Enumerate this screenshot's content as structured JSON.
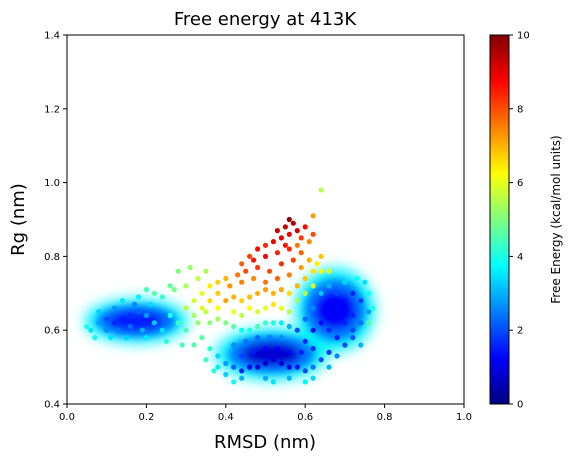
{
  "chart_data": {
    "type": "scatter",
    "title": "Free energy at 413K",
    "xlabel": "RMSD (nm)",
    "ylabel": "Rg (nm)",
    "xlim": [
      0.0,
      1.0
    ],
    "ylim": [
      0.4,
      1.4
    ],
    "xticks": [
      "0.0",
      "0.2",
      "0.4",
      "0.6",
      "0.8",
      "1.0"
    ],
    "yticks": [
      "0.4",
      "0.6",
      "0.8",
      "1.0",
      "1.2",
      "1.4"
    ],
    "grid": false,
    "colormap": "jet",
    "colorbar": {
      "label": "Free Energy (kcal/mol units)",
      "range": [
        0,
        10
      ],
      "ticks": [
        "0",
        "2",
        "4",
        "6",
        "8",
        "10"
      ]
    },
    "regions": [
      {
        "description": "left basin",
        "x": [
          0.05,
          0.3
        ],
        "y": [
          0.57,
          0.68
        ],
        "min_energy": 1.5
      },
      {
        "description": "central low basin",
        "x": [
          0.38,
          0.65
        ],
        "y": [
          0.47,
          0.6
        ],
        "min_energy": 0.8
      },
      {
        "description": "right vertical basin",
        "x": [
          0.58,
          0.77
        ],
        "y": [
          0.55,
          0.76
        ],
        "min_energy": 1.2
      },
      {
        "description": "high-energy tail",
        "x": [
          0.35,
          0.66
        ],
        "y": [
          0.62,
          0.91
        ],
        "max_energy": 9.8
      }
    ],
    "points": [
      [
        0.06,
        0.6,
        3.5
      ],
      [
        0.08,
        0.62,
        2.8
      ],
      [
        0.1,
        0.63,
        2.0
      ],
      [
        0.12,
        0.62,
        1.6
      ],
      [
        0.14,
        0.63,
        1.5
      ],
      [
        0.16,
        0.64,
        1.7
      ],
      [
        0.18,
        0.65,
        2.2
      ],
      [
        0.2,
        0.64,
        2.8
      ],
      [
        0.22,
        0.62,
        3.2
      ],
      [
        0.24,
        0.6,
        3.5
      ],
      [
        0.1,
        0.6,
        2.6
      ],
      [
        0.13,
        0.6,
        2.4
      ],
      [
        0.16,
        0.61,
        2.3
      ],
      [
        0.19,
        0.6,
        3.0
      ],
      [
        0.08,
        0.65,
        3.3
      ],
      [
        0.12,
        0.66,
        2.7
      ],
      [
        0.17,
        0.67,
        2.6
      ],
      [
        0.21,
        0.67,
        3.4
      ],
      [
        0.26,
        0.64,
        4.0
      ],
      [
        0.28,
        0.62,
        4.3
      ],
      [
        0.3,
        0.6,
        4.5
      ],
      [
        0.07,
        0.58,
        3.9
      ],
      [
        0.11,
        0.58,
        3.5
      ],
      [
        0.15,
        0.58,
        3.3
      ],
      [
        0.2,
        0.58,
        3.6
      ],
      [
        0.25,
        0.57,
        4.1
      ],
      [
        0.29,
        0.56,
        4.4
      ],
      [
        0.32,
        0.56,
        4.6
      ],
      [
        0.24,
        0.69,
        4.3
      ],
      [
        0.27,
        0.71,
        4.9
      ],
      [
        0.22,
        0.7,
        4.6
      ],
      [
        0.3,
        0.72,
        5.4
      ],
      [
        0.33,
        0.74,
        5.6
      ],
      [
        0.31,
        0.77,
        5.2
      ],
      [
        0.35,
        0.76,
        5.4
      ],
      [
        0.34,
        0.58,
        4.6
      ],
      [
        0.36,
        0.55,
        4.2
      ],
      [
        0.38,
        0.53,
        3.4
      ],
      [
        0.4,
        0.51,
        2.8
      ],
      [
        0.42,
        0.5,
        2.2
      ],
      [
        0.44,
        0.49,
        1.6
      ],
      [
        0.46,
        0.5,
        1.2
      ],
      [
        0.48,
        0.5,
        0.9
      ],
      [
        0.5,
        0.51,
        0.8
      ],
      [
        0.52,
        0.52,
        0.8
      ],
      [
        0.54,
        0.51,
        0.9
      ],
      [
        0.56,
        0.5,
        1.1
      ],
      [
        0.58,
        0.5,
        1.4
      ],
      [
        0.6,
        0.49,
        1.9
      ],
      [
        0.62,
        0.5,
        2.4
      ],
      [
        0.64,
        0.52,
        2.0
      ],
      [
        0.66,
        0.54,
        1.8
      ],
      [
        0.44,
        0.53,
        1.9
      ],
      [
        0.47,
        0.54,
        1.5
      ],
      [
        0.5,
        0.55,
        1.3
      ],
      [
        0.53,
        0.55,
        1.2
      ],
      [
        0.56,
        0.54,
        1.3
      ],
      [
        0.59,
        0.54,
        1.5
      ],
      [
        0.62,
        0.55,
        1.7
      ],
      [
        0.42,
        0.56,
        2.6
      ],
      [
        0.45,
        0.57,
        2.4
      ],
      [
        0.48,
        0.58,
        2.3
      ],
      [
        0.51,
        0.58,
        2.5
      ],
      [
        0.54,
        0.58,
        2.6
      ],
      [
        0.4,
        0.48,
        3.3
      ],
      [
        0.44,
        0.47,
        3.0
      ],
      [
        0.5,
        0.47,
        2.9
      ],
      [
        0.56,
        0.47,
        3.0
      ],
      [
        0.62,
        0.47,
        3.4
      ],
      [
        0.38,
        0.5,
        3.6
      ],
      [
        0.6,
        0.57,
        1.6
      ],
      [
        0.62,
        0.6,
        1.4
      ],
      [
        0.64,
        0.62,
        1.3
      ],
      [
        0.66,
        0.64,
        1.2
      ],
      [
        0.68,
        0.66,
        1.3
      ],
      [
        0.7,
        0.68,
        1.4
      ],
      [
        0.72,
        0.7,
        1.6
      ],
      [
        0.74,
        0.68,
        1.9
      ],
      [
        0.76,
        0.65,
        2.8
      ],
      [
        0.74,
        0.62,
        2.3
      ],
      [
        0.72,
        0.58,
        2.1
      ],
      [
        0.7,
        0.56,
        2.0
      ],
      [
        0.68,
        0.58,
        1.5
      ],
      [
        0.66,
        0.6,
        1.6
      ],
      [
        0.7,
        0.62,
        1.5
      ],
      [
        0.72,
        0.64,
        1.6
      ],
      [
        0.68,
        0.7,
        2.0
      ],
      [
        0.66,
        0.72,
        3.0
      ],
      [
        0.7,
        0.73,
        3.4
      ],
      [
        0.73,
        0.74,
        3.8
      ],
      [
        0.64,
        0.7,
        3.2
      ],
      [
        0.62,
        0.66,
        2.6
      ],
      [
        0.6,
        0.63,
        2.3
      ],
      [
        0.58,
        0.6,
        2.0
      ],
      [
        0.56,
        0.61,
        3.0
      ],
      [
        0.54,
        0.62,
        3.6
      ],
      [
        0.52,
        0.62,
        4.0
      ],
      [
        0.5,
        0.62,
        4.3
      ],
      [
        0.48,
        0.61,
        4.5
      ],
      [
        0.46,
        0.6,
        4.0
      ],
      [
        0.44,
        0.6,
        3.8
      ],
      [
        0.42,
        0.61,
        4.6
      ],
      [
        0.4,
        0.62,
        5.0
      ],
      [
        0.38,
        0.63,
        5.3
      ],
      [
        0.36,
        0.62,
        5.1
      ],
      [
        0.3,
        0.66,
        5.6
      ],
      [
        0.32,
        0.64,
        5.4
      ],
      [
        0.34,
        0.66,
        5.9
      ],
      [
        0.38,
        0.66,
        6.2
      ],
      [
        0.42,
        0.65,
        6.1
      ],
      [
        0.44,
        0.64,
        5.6
      ],
      [
        0.46,
        0.66,
        6.3
      ],
      [
        0.48,
        0.65,
        5.8
      ],
      [
        0.5,
        0.66,
        6.0
      ],
      [
        0.52,
        0.67,
        6.5
      ],
      [
        0.54,
        0.66,
        6.0
      ],
      [
        0.56,
        0.65,
        5.5
      ],
      [
        0.58,
        0.68,
        5.3
      ],
      [
        0.6,
        0.7,
        5.6
      ],
      [
        0.62,
        0.72,
        5.8
      ],
      [
        0.64,
        0.76,
        6.2
      ],
      [
        0.62,
        0.76,
        6.5
      ],
      [
        0.6,
        0.74,
        6.8
      ],
      [
        0.58,
        0.72,
        7.0
      ],
      [
        0.56,
        0.7,
        6.6
      ],
      [
        0.54,
        0.71,
        7.1
      ],
      [
        0.52,
        0.7,
        7.0
      ],
      [
        0.5,
        0.71,
        7.2
      ],
      [
        0.48,
        0.7,
        7.0
      ],
      [
        0.46,
        0.69,
        6.9
      ],
      [
        0.44,
        0.68,
        6.7
      ],
      [
        0.42,
        0.69,
        7.0
      ],
      [
        0.4,
        0.68,
        7.2
      ],
      [
        0.38,
        0.7,
        6.8
      ],
      [
        0.36,
        0.68,
        6.6
      ],
      [
        0.34,
        0.7,
        6.0
      ],
      [
        0.32,
        0.68,
        5.8
      ],
      [
        0.41,
        0.72,
        7.3
      ],
      [
        0.44,
        0.73,
        7.5
      ],
      [
        0.47,
        0.74,
        7.4
      ],
      [
        0.5,
        0.73,
        7.6
      ],
      [
        0.53,
        0.74,
        7.8
      ],
      [
        0.56,
        0.75,
        7.5
      ],
      [
        0.59,
        0.77,
        7.2
      ],
      [
        0.61,
        0.79,
        7.0
      ],
      [
        0.63,
        0.78,
        6.4
      ],
      [
        0.45,
        0.76,
        8.0
      ],
      [
        0.48,
        0.77,
        8.2
      ],
      [
        0.51,
        0.76,
        8.0
      ],
      [
        0.54,
        0.78,
        8.3
      ],
      [
        0.57,
        0.79,
        8.1
      ],
      [
        0.59,
        0.81,
        7.8
      ],
      [
        0.47,
        0.79,
        8.6
      ],
      [
        0.5,
        0.8,
        8.8
      ],
      [
        0.53,
        0.81,
        8.5
      ],
      [
        0.56,
        0.82,
        8.4
      ],
      [
        0.58,
        0.83,
        7.6
      ],
      [
        0.52,
        0.84,
        8.9
      ],
      [
        0.54,
        0.85,
        9.0
      ],
      [
        0.56,
        0.86,
        8.9
      ],
      [
        0.55,
        0.88,
        9.3
      ],
      [
        0.57,
        0.89,
        9.5
      ],
      [
        0.56,
        0.9,
        9.8
      ],
      [
        0.58,
        0.87,
        9.1
      ],
      [
        0.6,
        0.88,
        8.7
      ],
      [
        0.59,
        0.85,
        8.2
      ],
      [
        0.62,
        0.86,
        8.0
      ],
      [
        0.61,
        0.84,
        7.4
      ],
      [
        0.53,
        0.87,
        9.2
      ],
      [
        0.55,
        0.83,
        8.6
      ],
      [
        0.5,
        0.83,
        8.4
      ],
      [
        0.48,
        0.82,
        8.7
      ],
      [
        0.46,
        0.8,
        8.1
      ],
      [
        0.44,
        0.78,
        7.8
      ],
      [
        0.43,
        0.75,
        7.6
      ],
      [
        0.4,
        0.74,
        7.0
      ],
      [
        0.38,
        0.73,
        6.7
      ],
      [
        0.36,
        0.72,
        6.4
      ],
      [
        0.35,
        0.65,
        5.7
      ],
      [
        0.33,
        0.62,
        5.2
      ],
      [
        0.62,
        0.91,
        7.2
      ],
      [
        0.64,
        0.98,
        5.5
      ],
      [
        0.28,
        0.76,
        5.0
      ],
      [
        0.26,
        0.72,
        4.7
      ],
      [
        0.2,
        0.71,
        4.4
      ],
      [
        0.18,
        0.69,
        3.6
      ],
      [
        0.14,
        0.68,
        3.5
      ],
      [
        0.05,
        0.61,
        4.0
      ],
      [
        0.76,
        0.62,
        4.5
      ],
      [
        0.77,
        0.66,
        4.0
      ],
      [
        0.76,
        0.7,
        3.8
      ],
      [
        0.75,
        0.73,
        3.5
      ],
      [
        0.66,
        0.76,
        6.0
      ],
      [
        0.64,
        0.8,
        6.8
      ],
      [
        0.35,
        0.52,
        4.3
      ],
      [
        0.37,
        0.49,
        4.1
      ],
      [
        0.42,
        0.46,
        3.9
      ],
      [
        0.52,
        0.46,
        3.5
      ],
      [
        0.6,
        0.46,
        3.7
      ],
      [
        0.66,
        0.5,
        3.0
      ],
      [
        0.68,
        0.53,
        2.6
      ],
      [
        0.74,
        0.56,
        3.0
      ],
      [
        0.72,
        0.6,
        1.9
      ]
    ]
  }
}
